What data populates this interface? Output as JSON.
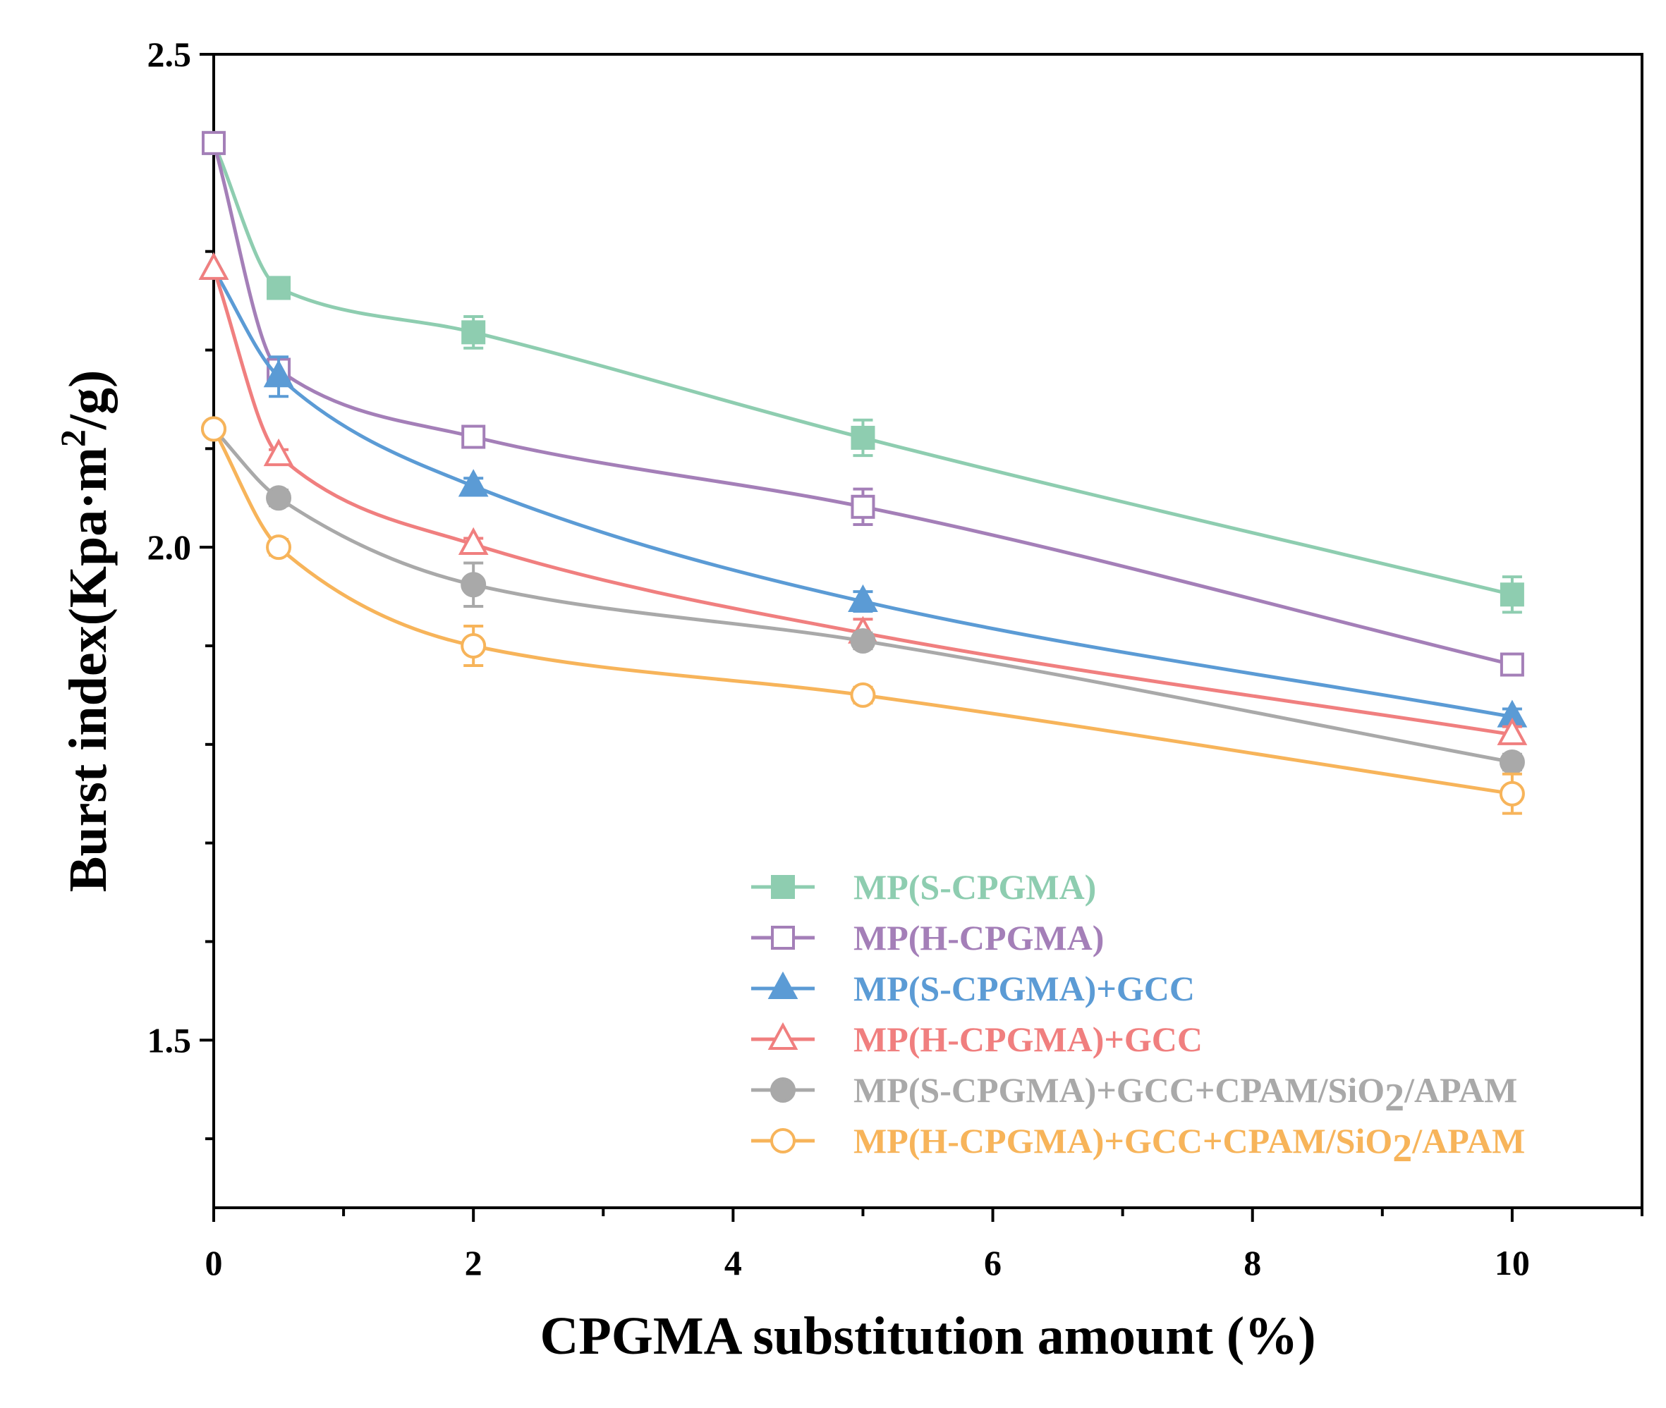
{
  "chart_data": {
    "type": "line",
    "title": "",
    "xlabel": "CPGMA substitution amount (%)",
    "ylabel": {
      "pre": "Burst index(Kpa·m",
      "sup": "2",
      "post": "/g)"
    },
    "xlim": [
      0,
      11
    ],
    "ylim": [
      1.33,
      2.5
    ],
    "x_ticks": [
      "0",
      "2",
      "4",
      "6",
      "8",
      "10"
    ],
    "y_ticks": [
      "1.5",
      "2.0",
      "2.5"
    ],
    "legend_position": "bottom-right",
    "x": [
      0,
      0.5,
      2,
      5,
      10
    ],
    "series": [
      {
        "name": "MP(S-CPGMA)",
        "name_pre": "MP(S-CPGMA)",
        "name_sub": "",
        "name_post": "",
        "color": "#8ecdb0",
        "marker": "square",
        "filled": true,
        "values": [
          2.41,
          2.263,
          2.218,
          2.111,
          1.952
        ],
        "errors": [
          0.0,
          0.008,
          0.016,
          0.018,
          0.018
        ]
      },
      {
        "name": "MP(H-CPGMA)",
        "name_pre": "MP(H-CPGMA)",
        "name_sub": "",
        "name_post": "",
        "color": "#a47fb8",
        "marker": "square",
        "filled": false,
        "values": [
          2.41,
          2.18,
          2.112,
          2.041,
          1.881
        ],
        "errors": [
          0.0,
          0.008,
          0.008,
          0.018,
          0.006
        ]
      },
      {
        "name": "MP(S-CPGMA)+GCC",
        "name_pre": "MP(S-CPGMA)+GCC",
        "name_sub": "",
        "name_post": "",
        "color": "#5b9bd5",
        "marker": "triangle",
        "filled": true,
        "values": [
          2.282,
          2.173,
          2.062,
          1.945,
          1.828
        ],
        "errors": [
          0.0,
          0.02,
          0.008,
          0.01,
          0.008
        ]
      },
      {
        "name": "MP(H-CPGMA)+GCC",
        "name_pre": "MP(H-CPGMA)+GCC",
        "name_sub": "",
        "name_post": "",
        "color": "#f07f7f",
        "marker": "triangle",
        "filled": false,
        "values": [
          2.282,
          2.093,
          2.003,
          1.913,
          1.81
        ],
        "errors": [
          0.0,
          0.006,
          0.006,
          0.014,
          0.008
        ]
      },
      {
        "name": "MP(S-CPGMA)+GCC+CPAM/SiO2/APAM",
        "name_pre": "MP(S-CPGMA)+GCC+CPAM/SiO",
        "name_sub": "2",
        "name_post": "/APAM",
        "color": "#a9a9a9",
        "marker": "circle",
        "filled": true,
        "values": [
          2.12,
          2.05,
          1.962,
          1.905,
          1.782
        ],
        "errors": [
          0.0,
          0.008,
          0.022,
          0.008,
          0.008
        ]
      },
      {
        "name": "MP(H-CPGMA)+GCC+CPAM/SiO2/APAM",
        "name_pre": "MP(H-CPGMA)+GCC+CPAM/SiO",
        "name_sub": "2",
        "name_post": "/APAM",
        "color": "#f7b45a",
        "marker": "circle",
        "filled": false,
        "values": [
          2.12,
          2.0,
          1.9,
          1.85,
          1.75
        ],
        "errors": [
          0.0,
          0.008,
          0.02,
          0.008,
          0.02
        ]
      }
    ]
  }
}
